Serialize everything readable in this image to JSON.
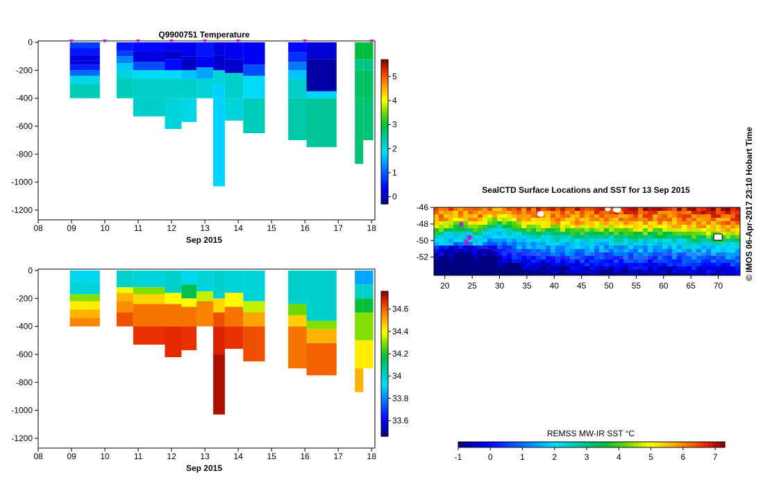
{
  "chart_data": [
    {
      "id": "temperature",
      "type": "heatmap",
      "title": "Q9900751  Temperature",
      "xlabel": "Sep 2015",
      "xticks": [
        "08",
        "09",
        "10",
        "11",
        "12",
        "13",
        "14",
        "15",
        "16",
        "17",
        "18"
      ],
      "xlim": [
        8,
        18.1
      ],
      "ylim": [
        -1270,
        10
      ],
      "yticks": [
        0,
        -200,
        -400,
        -600,
        -800,
        -1000,
        -1200
      ],
      "colorbar": {
        "ticks": [
          0,
          1,
          2,
          3,
          4,
          5
        ],
        "range": [
          -0.3,
          5.7
        ]
      },
      "surface_markers": [
        9,
        10,
        11,
        12,
        13,
        14,
        16,
        18
      ],
      "profiles": [
        {
          "x0": 8.95,
          "x1": 9.85,
          "layers": [
            [
              0,
              -40,
              0.8
            ],
            [
              -40,
              -90,
              0.5
            ],
            [
              -90,
              -130,
              0.2
            ],
            [
              -130,
              -160,
              0.2
            ],
            [
              -160,
              -200,
              0.6
            ],
            [
              -200,
              -240,
              1.1
            ],
            [
              -240,
              -300,
              2.0
            ],
            [
              -300,
              -400,
              2.3
            ]
          ]
        },
        {
          "x0": 10.35,
          "x1": 10.85,
          "layers": [
            [
              0,
              -60,
              0.5
            ],
            [
              -60,
              -100,
              0.8
            ],
            [
              -100,
              -150,
              1.3
            ],
            [
              -150,
              -200,
              1.7
            ],
            [
              -200,
              -260,
              2.1
            ],
            [
              -260,
              -400,
              2.3
            ]
          ]
        },
        {
          "x0": 10.85,
          "x1": 11.8,
          "layers": [
            [
              0,
              -60,
              0.4
            ],
            [
              -60,
              -140,
              0.2
            ],
            [
              -140,
              -200,
              0.9
            ],
            [
              -200,
              -260,
              1.9
            ],
            [
              -260,
              -400,
              2.2
            ],
            [
              -400,
              -530,
              2.2
            ]
          ]
        },
        {
          "x0": 11.8,
          "x1": 12.3,
          "layers": [
            [
              0,
              -60,
              0.3
            ],
            [
              -60,
              -120,
              0.1
            ],
            [
              -120,
              -200,
              0.4
            ],
            [
              -200,
              -260,
              1.9
            ],
            [
              -260,
              -400,
              2.2
            ],
            [
              -400,
              -620,
              2.1
            ]
          ]
        },
        {
          "x0": 12.3,
          "x1": 12.75,
          "layers": [
            [
              0,
              -100,
              0.3
            ],
            [
              -100,
              -200,
              0.05
            ],
            [
              -200,
              -260,
              1.7
            ],
            [
              -260,
              -400,
              2.2
            ],
            [
              -400,
              -570,
              2.0
            ]
          ]
        },
        {
          "x0": 12.75,
          "x1": 13.25,
          "layers": [
            [
              0,
              -100,
              0.5
            ],
            [
              -100,
              -180,
              0.3
            ],
            [
              -180,
              -260,
              1.5
            ],
            [
              -260,
              -400,
              2.1
            ]
          ]
        },
        {
          "x0": 13.25,
          "x1": 13.6,
          "layers": [
            [
              0,
              -90,
              0.2
            ],
            [
              -90,
              -200,
              0.1
            ],
            [
              -200,
              -300,
              2.1
            ],
            [
              -300,
              -1030,
              1.8
            ]
          ]
        },
        {
          "x0": 13.6,
          "x1": 14.15,
          "layers": [
            [
              0,
              -120,
              0.3
            ],
            [
              -120,
              -220,
              0.1
            ],
            [
              -220,
              -400,
              2.2
            ],
            [
              -400,
              -560,
              2.1
            ]
          ]
        },
        {
          "x0": 14.15,
          "x1": 14.8,
          "layers": [
            [
              0,
              -160,
              0.3
            ],
            [
              -160,
              -240,
              0.9
            ],
            [
              -240,
              -400,
              1.9
            ],
            [
              -400,
              -650,
              2.3
            ]
          ]
        },
        {
          "x0": 15.5,
          "x1": 16.05,
          "layers": [
            [
              0,
              -70,
              0.4
            ],
            [
              -70,
              -140,
              0.7
            ],
            [
              -140,
              -200,
              1.2
            ],
            [
              -200,
              -260,
              1.7
            ],
            [
              -260,
              -400,
              2.2
            ],
            [
              -400,
              -700,
              2.4
            ]
          ]
        },
        {
          "x0": 16.05,
          "x1": 16.95,
          "layers": [
            [
              0,
              -120,
              0.15
            ],
            [
              -120,
              -350,
              -0.1
            ],
            [
              -350,
              -400,
              1.8
            ],
            [
              -400,
              -750,
              2.5
            ]
          ]
        },
        {
          "x0": 17.5,
          "x1": 17.75,
          "layers": [
            [
              0,
              -120,
              3.0
            ],
            [
              -120,
              -200,
              2.6
            ],
            [
              -200,
              -400,
              2.8
            ],
            [
              -400,
              -870,
              2.7
            ]
          ]
        },
        {
          "x0": 17.75,
          "x1": 18.05,
          "layers": [
            [
              0,
              -120,
              3.0
            ],
            [
              -120,
              -200,
              2.6
            ],
            [
              -200,
              -400,
              2.8
            ],
            [
              -400,
              -700,
              2.7
            ]
          ]
        }
      ]
    },
    {
      "id": "salinity",
      "type": "heatmap",
      "title": "",
      "xlabel": "Sep 2015",
      "xticks": [
        "08",
        "09",
        "10",
        "11",
        "12",
        "13",
        "14",
        "15",
        "16",
        "17",
        "18"
      ],
      "xlim": [
        8,
        18.1
      ],
      "ylim": [
        -1270,
        10
      ],
      "yticks": [
        0,
        -200,
        -400,
        -600,
        -800,
        -1000,
        -1200
      ],
      "colorbar": {
        "ticks": [
          33.6,
          33.8,
          34,
          34.2,
          34.4,
          34.6
        ],
        "range": [
          33.46,
          34.76
        ]
      },
      "profiles": [
        {
          "x0": 8.95,
          "x1": 9.85,
          "layers": [
            [
              0,
              -80,
              33.95
            ],
            [
              -80,
              -170,
              33.98
            ],
            [
              -170,
              -220,
              34.3
            ],
            [
              -220,
              -280,
              34.42
            ],
            [
              -280,
              -340,
              34.5
            ],
            [
              -340,
              -400,
              34.56
            ]
          ]
        },
        {
          "x0": 10.35,
          "x1": 10.85,
          "layers": [
            [
              0,
              -120,
              34.0
            ],
            [
              -120,
              -160,
              34.38
            ],
            [
              -160,
              -220,
              34.5
            ],
            [
              -220,
              -300,
              34.55
            ],
            [
              -300,
              -400,
              34.62
            ]
          ]
        },
        {
          "x0": 10.85,
          "x1": 11.8,
          "layers": [
            [
              0,
              -120,
              33.98
            ],
            [
              -120,
              -170,
              34.3
            ],
            [
              -170,
              -240,
              34.45
            ],
            [
              -240,
              -400,
              34.58
            ],
            [
              -400,
              -530,
              34.66
            ]
          ]
        },
        {
          "x0": 11.8,
          "x1": 12.3,
          "layers": [
            [
              0,
              -160,
              34.0
            ],
            [
              -160,
              -240,
              34.4
            ],
            [
              -240,
              -400,
              34.58
            ],
            [
              -400,
              -620,
              34.67
            ]
          ]
        },
        {
          "x0": 12.3,
          "x1": 12.75,
          "layers": [
            [
              0,
              -100,
              33.95
            ],
            [
              -100,
              -200,
              34.15
            ],
            [
              -200,
              -260,
              34.4
            ],
            [
              -260,
              -400,
              34.58
            ],
            [
              -400,
              -570,
              34.66
            ]
          ]
        },
        {
          "x0": 12.75,
          "x1": 13.25,
          "layers": [
            [
              0,
              -150,
              33.98
            ],
            [
              -150,
              -220,
              34.35
            ],
            [
              -220,
              -400,
              34.56
            ]
          ]
        },
        {
          "x0": 13.25,
          "x1": 13.6,
          "layers": [
            [
              0,
              -200,
              34.0
            ],
            [
              -200,
              -300,
              34.45
            ],
            [
              -300,
              -400,
              34.62
            ],
            [
              -400,
              -600,
              34.68
            ],
            [
              -600,
              -1030,
              34.72
            ]
          ]
        },
        {
          "x0": 13.6,
          "x1": 14.15,
          "layers": [
            [
              0,
              -160,
              33.98
            ],
            [
              -160,
              -260,
              34.4
            ],
            [
              -260,
              -400,
              34.58
            ],
            [
              -400,
              -560,
              34.66
            ]
          ]
        },
        {
          "x0": 14.15,
          "x1": 14.8,
          "layers": [
            [
              0,
              -220,
              33.98
            ],
            [
              -220,
              -300,
              34.35
            ],
            [
              -300,
              -400,
              34.52
            ],
            [
              -400,
              -650,
              34.62
            ]
          ]
        },
        {
          "x0": 15.5,
          "x1": 16.05,
          "layers": [
            [
              0,
              -240,
              34.0
            ],
            [
              -240,
              -320,
              34.28
            ],
            [
              -320,
              -400,
              34.46
            ],
            [
              -400,
              -700,
              34.58
            ]
          ]
        },
        {
          "x0": 16.05,
          "x1": 16.95,
          "layers": [
            [
              0,
              -360,
              34.0
            ],
            [
              -360,
              -420,
              34.3
            ],
            [
              -420,
              -520,
              34.5
            ],
            [
              -520,
              -750,
              34.6
            ]
          ]
        },
        {
          "x0": 17.5,
          "x1": 17.75,
          "layers": [
            [
              0,
              -100,
              33.85
            ],
            [
              -100,
              -200,
              34.0
            ],
            [
              -200,
              -300,
              34.18
            ],
            [
              -300,
              -500,
              34.3
            ],
            [
              -500,
              -700,
              34.42
            ],
            [
              -700,
              -870,
              34.5
            ]
          ]
        },
        {
          "x0": 17.75,
          "x1": 18.05,
          "layers": [
            [
              0,
              -100,
              33.85
            ],
            [
              -100,
              -200,
              34.0
            ],
            [
              -200,
              -300,
              34.18
            ],
            [
              -300,
              -500,
              34.3
            ],
            [
              -500,
              -700,
              34.42
            ]
          ]
        }
      ]
    },
    {
      "id": "sst-map",
      "type": "heatmap",
      "title": "SealCTD Surface Locations and SST for 13 Sep 2015",
      "xticks": [
        20,
        25,
        30,
        35,
        40,
        45,
        50,
        55,
        60,
        65,
        70
      ],
      "yticks": [
        -46,
        -48,
        -50,
        -52
      ],
      "xlim": [
        18,
        74
      ],
      "ylim": [
        -54.2,
        -46
      ],
      "colorbar_label": "REMSS MW-IR SST °C",
      "colorbar": {
        "ticks": [
          -1,
          0,
          1,
          2,
          3,
          4,
          5,
          6,
          7
        ],
        "range": [
          -1,
          7.3
        ]
      },
      "front_lat_by_lon": [
        [
          18,
          -49.5
        ],
        [
          22,
          -48.8
        ],
        [
          26,
          -49.2
        ],
        [
          28,
          -48.7
        ],
        [
          30,
          -48.3
        ],
        [
          34,
          -49.2
        ],
        [
          40,
          -49.4
        ],
        [
          45,
          -49.6
        ],
        [
          50,
          -49.5
        ],
        [
          55,
          -49.8
        ],
        [
          60,
          -49.6
        ],
        [
          65,
          -50.0
        ],
        [
          70,
          -50.1
        ],
        [
          74,
          -50.3
        ]
      ],
      "track": [
        [
          23,
          -48
        ],
        [
          23.5,
          -48.6
        ],
        [
          24,
          -49.5
        ],
        [
          24.5,
          -50
        ],
        [
          25,
          -49.6
        ],
        [
          26,
          -50.5
        ],
        [
          28,
          -51
        ],
        [
          33,
          -51.6
        ],
        [
          38,
          -51.8
        ],
        [
          43,
          -52.0
        ],
        [
          48,
          -51.7
        ],
        [
          53,
          -52.1
        ],
        [
          58,
          -51.9
        ],
        [
          63,
          -51.6
        ],
        [
          68,
          -51.8
        ],
        [
          72,
          -51.5
        ]
      ],
      "locations": [
        [
          24.5,
          -49.6
        ],
        [
          24,
          -50.2
        ],
        [
          23,
          -48
        ]
      ]
    }
  ],
  "side_label": "© IMOS 06-Apr-2017 23:10 Hobart Time"
}
